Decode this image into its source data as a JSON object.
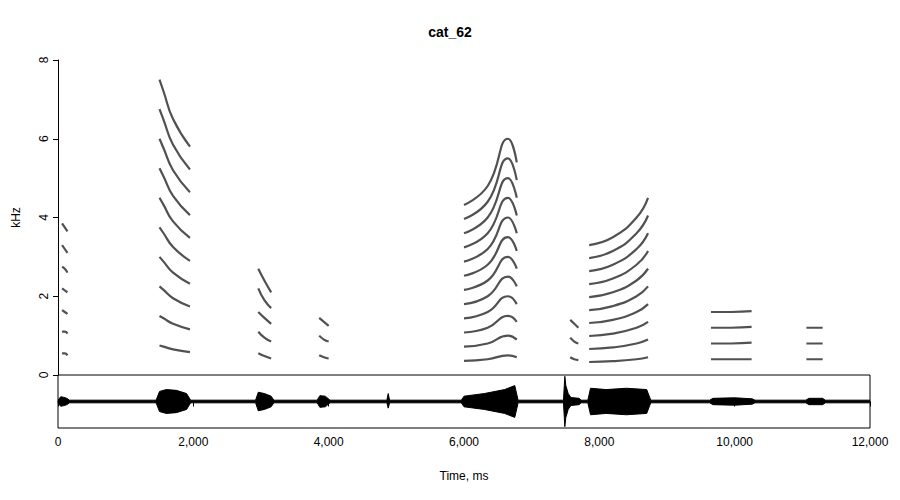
{
  "chart_data": [
    {
      "type": "spectrogram",
      "title": "cat_62",
      "y_label": "kHz",
      "color": "#333333",
      "xlim": [
        0,
        12000
      ],
      "ylim": [
        0,
        8
      ],
      "yticks": [
        0,
        2,
        4,
        6,
        8
      ],
      "tick_labels": "y",
      "grid": false,
      "calls": [
        {
          "x": [
            60,
            100,
            140
          ],
          "harmonics": [
            [
              0.55,
              0.55,
              0.5
            ],
            [
              1.1,
              1.1,
              1.05
            ],
            [
              1.65,
              1.6,
              1.55
            ],
            [
              2.2,
              2.15,
              2.1
            ],
            [
              2.75,
              2.7,
              2.6
            ],
            [
              3.3,
              3.2,
              3.1
            ],
            [
              3.85,
              3.75,
              3.65
            ]
          ]
        },
        {
          "x": [
            1500,
            1560,
            1700,
            1950
          ],
          "harmonics": [
            [
              0.75,
              0.72,
              0.65,
              0.58
            ],
            [
              1.5,
              1.44,
              1.3,
              1.16
            ],
            [
              2.25,
              2.16,
              1.95,
              1.74
            ],
            [
              3.0,
              2.88,
              2.6,
              2.32
            ],
            [
              3.75,
              3.6,
              3.25,
              2.9
            ],
            [
              4.5,
              4.32,
              3.9,
              3.48
            ],
            [
              5.25,
              5.04,
              4.55,
              4.06
            ],
            [
              6.0,
              5.76,
              5.2,
              4.64
            ],
            [
              6.75,
              6.48,
              5.85,
              5.22
            ],
            [
              7.5,
              7.2,
              6.5,
              5.8
            ]
          ]
        },
        {
          "x": [
            2960,
            3050,
            3150
          ],
          "harmonics": [
            [
              0.55,
              0.48,
              0.42
            ],
            [
              1.1,
              0.95,
              0.85
            ],
            [
              1.6,
              1.45,
              1.3
            ],
            [
              2.2,
              1.9,
              1.7
            ],
            [
              2.7,
              2.4,
              2.1
            ]
          ]
        },
        {
          "x": [
            3860,
            3930,
            4000
          ],
          "harmonics": [
            [
              0.5,
              0.45,
              0.42
            ],
            [
              1.0,
              0.9,
              0.85
            ],
            [
              1.45,
              1.35,
              1.25
            ]
          ]
        },
        {
          "x": [
            6000,
            6350,
            6650,
            6780
          ],
          "harmonics": [
            [
              0.36,
              0.4,
              0.5,
              0.45
            ],
            [
              0.72,
              0.8,
              1.0,
              0.9
            ],
            [
              1.08,
              1.2,
              1.5,
              1.35
            ],
            [
              1.44,
              1.6,
              2.0,
              1.8
            ],
            [
              1.8,
              2.0,
              2.5,
              2.25
            ],
            [
              2.16,
              2.4,
              3.0,
              2.7
            ],
            [
              2.52,
              2.8,
              3.5,
              3.15
            ],
            [
              2.88,
              3.2,
              4.0,
              3.6
            ],
            [
              3.24,
              3.6,
              4.5,
              4.05
            ],
            [
              3.6,
              4.0,
              5.0,
              4.5
            ],
            [
              3.96,
              4.4,
              5.5,
              4.95
            ],
            [
              4.32,
              4.8,
              6.0,
              5.4
            ]
          ]
        },
        {
          "x": [
            7570,
            7630,
            7690
          ],
          "harmonics": [
            [
              0.45,
              0.4,
              0.38
            ],
            [
              0.95,
              0.85,
              0.8
            ],
            [
              1.4,
              1.3,
              1.2
            ]
          ]
        },
        {
          "x": [
            7850,
            8200,
            8550,
            8720
          ],
          "harmonics": [
            [
              0.33,
              0.35,
              0.4,
              0.45
            ],
            [
              0.66,
              0.7,
              0.8,
              0.9
            ],
            [
              0.99,
              1.05,
              1.2,
              1.35
            ],
            [
              1.32,
              1.4,
              1.6,
              1.8
            ],
            [
              1.65,
              1.75,
              2.0,
              2.25
            ],
            [
              1.98,
              2.1,
              2.4,
              2.7
            ],
            [
              2.31,
              2.45,
              2.8,
              3.15
            ],
            [
              2.64,
              2.8,
              3.2,
              3.6
            ],
            [
              2.97,
              3.15,
              3.6,
              4.05
            ],
            [
              3.3,
              3.5,
              4.0,
              4.5
            ]
          ]
        },
        {
          "x": [
            9650,
            9950,
            10250
          ],
          "harmonics": [
            [
              0.4,
              0.4,
              0.4
            ],
            [
              0.8,
              0.8,
              0.82
            ],
            [
              1.2,
              1.2,
              1.22
            ],
            [
              1.6,
              1.6,
              1.62
            ]
          ]
        },
        {
          "x": [
            11060,
            11180,
            11300
          ],
          "harmonics": [
            [
              0.4,
              0.4,
              0.4
            ],
            [
              0.8,
              0.8,
              0.8
            ],
            [
              1.2,
              1.2,
              1.2
            ]
          ]
        }
      ]
    },
    {
      "type": "area",
      "x_label": "Time, ms",
      "color": "#000000",
      "xlim": [
        0,
        12000
      ],
      "xticks": [
        0,
        2000,
        4000,
        6000,
        8000,
        10000,
        12000
      ],
      "ylim": [
        -1,
        1
      ],
      "tick_labels": "x",
      "grid": false,
      "x": [
        0,
        40,
        80,
        130,
        170,
        1450,
        1500,
        1600,
        1750,
        1900,
        1960,
        2920,
        2960,
        3050,
        3150,
        3190,
        3830,
        3870,
        3950,
        4020,
        4860,
        4880,
        4900,
        5960,
        6000,
        6300,
        6600,
        6750,
        6800,
        7470,
        7490,
        7505,
        7540,
        7580,
        7700,
        7730,
        7830,
        7870,
        8100,
        8400,
        8700,
        8760,
        9630,
        9680,
        10000,
        10260,
        10300,
        11050,
        11100,
        11300,
        11340,
        12000
      ],
      "upper": [
        0.05,
        0.18,
        0.16,
        0.12,
        0.05,
        0.05,
        0.38,
        0.45,
        0.42,
        0.3,
        0.05,
        0.05,
        0.35,
        0.3,
        0.2,
        0.05,
        0.05,
        0.22,
        0.2,
        0.05,
        0.05,
        0.3,
        0.05,
        0.05,
        0.2,
        0.3,
        0.45,
        0.6,
        0.05,
        0.05,
        0.95,
        0.6,
        0.3,
        0.15,
        0.12,
        0.05,
        0.05,
        0.5,
        0.45,
        0.5,
        0.45,
        0.05,
        0.05,
        0.12,
        0.14,
        0.1,
        0.05,
        0.05,
        0.12,
        0.12,
        0.05,
        0.05
      ],
      "lower": [
        -0.05,
        -0.18,
        -0.16,
        -0.12,
        -0.05,
        -0.05,
        -0.38,
        -0.45,
        -0.42,
        -0.3,
        -0.05,
        -0.05,
        -0.35,
        -0.3,
        -0.2,
        -0.05,
        -0.05,
        -0.22,
        -0.2,
        -0.05,
        -0.05,
        -0.25,
        -0.05,
        -0.05,
        -0.2,
        -0.3,
        -0.45,
        -0.6,
        -0.05,
        -0.05,
        -0.95,
        -0.6,
        -0.3,
        -0.15,
        -0.12,
        -0.05,
        -0.05,
        -0.5,
        -0.45,
        -0.5,
        -0.45,
        -0.05,
        -0.05,
        -0.12,
        -0.14,
        -0.1,
        -0.05,
        -0.05,
        -0.12,
        -0.12,
        -0.05,
        -0.05
      ]
    }
  ]
}
